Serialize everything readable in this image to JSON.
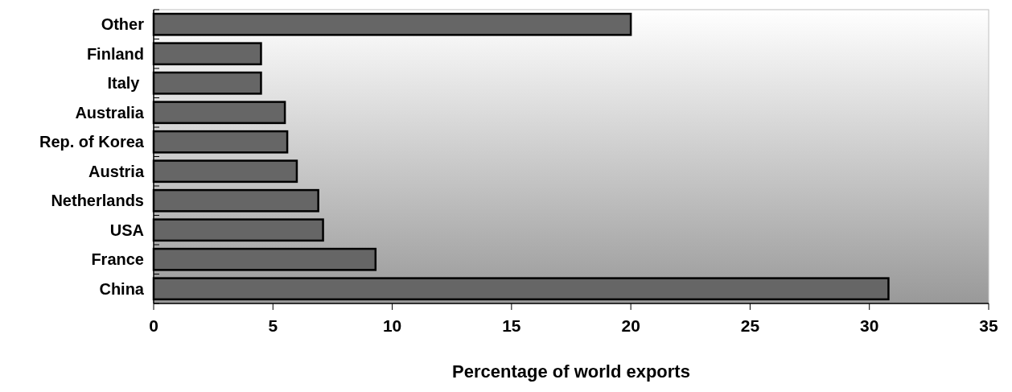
{
  "chart_data": {
    "type": "bar",
    "orientation": "horizontal",
    "xlabel": "Percentage of world exports",
    "categories": [
      "Other",
      "Finland",
      "Italy ",
      "Australia",
      "Rep. of Korea",
      "Austria",
      "Netherlands",
      "USA",
      "France",
      "China"
    ],
    "values": [
      20.0,
      4.5,
      4.5,
      5.5,
      5.6,
      6.0,
      6.9,
      7.1,
      9.3,
      30.8
    ],
    "color": "#666666",
    "xlim": [
      0,
      35
    ],
    "xticks": [
      0,
      5,
      10,
      15,
      20,
      25,
      30,
      35
    ],
    "grid": false
  }
}
